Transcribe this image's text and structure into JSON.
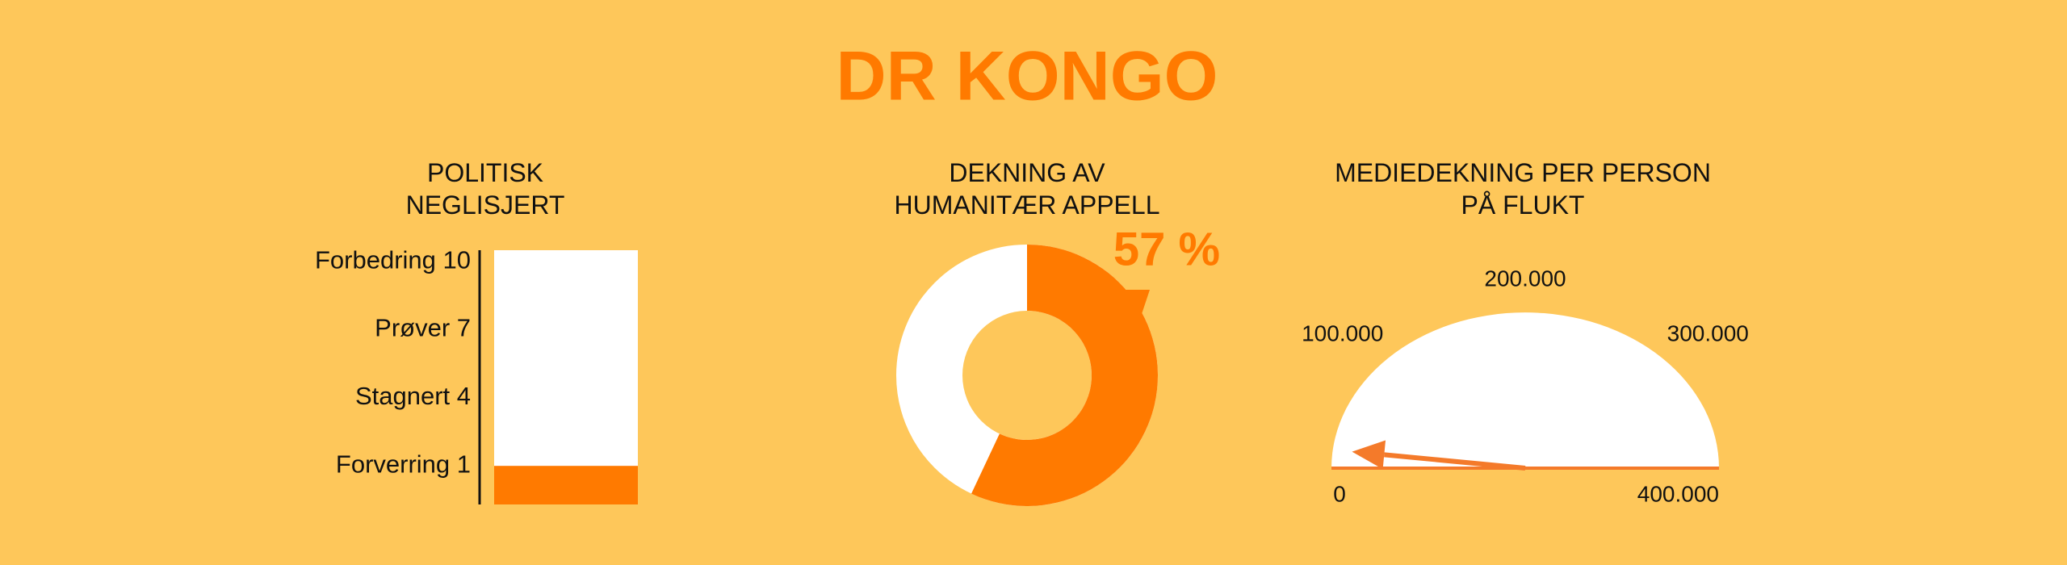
{
  "header": {
    "title": "DR KONGO"
  },
  "panels": [
    {
      "chart_data": {
        "type": "bar",
        "title": "POLITISK NEGLISJERT",
        "values": [
          1
        ],
        "color": "#ff7a00",
        "ylim": [
          -0.7,
          10.5
        ],
        "yticks": [
          {
            "value": 10,
            "label": "Forbedring 10"
          },
          {
            "value": 7,
            "label": "Prøver 7"
          },
          {
            "value": 4,
            "label": "Stagnert 4"
          },
          {
            "value": 1,
            "label": "Forverring 1"
          }
        ]
      }
    },
    {
      "chart_data": {
        "type": "donut",
        "title": "DEKNING AV HUMANITÆR APPELL",
        "values": [
          57
        ],
        "value_labels": [
          "57 %"
        ],
        "color": "#ff7a00"
      }
    },
    {
      "chart_data": {
        "type": "gauge",
        "title": "MEDIEDEKNING PER PERSON PÅ FLUKT",
        "values": [
          15000
        ],
        "color": "#f47a2a",
        "xlim": [
          0,
          400000
        ],
        "xticks": [
          0,
          {
            "value": 100000,
            "label": "100.000"
          },
          {
            "value": 200000,
            "label": "200.000"
          },
          {
            "value": 300000,
            "label": "300.000"
          },
          {
            "value": 400000,
            "label": "400.000"
          }
        ]
      }
    }
  ]
}
